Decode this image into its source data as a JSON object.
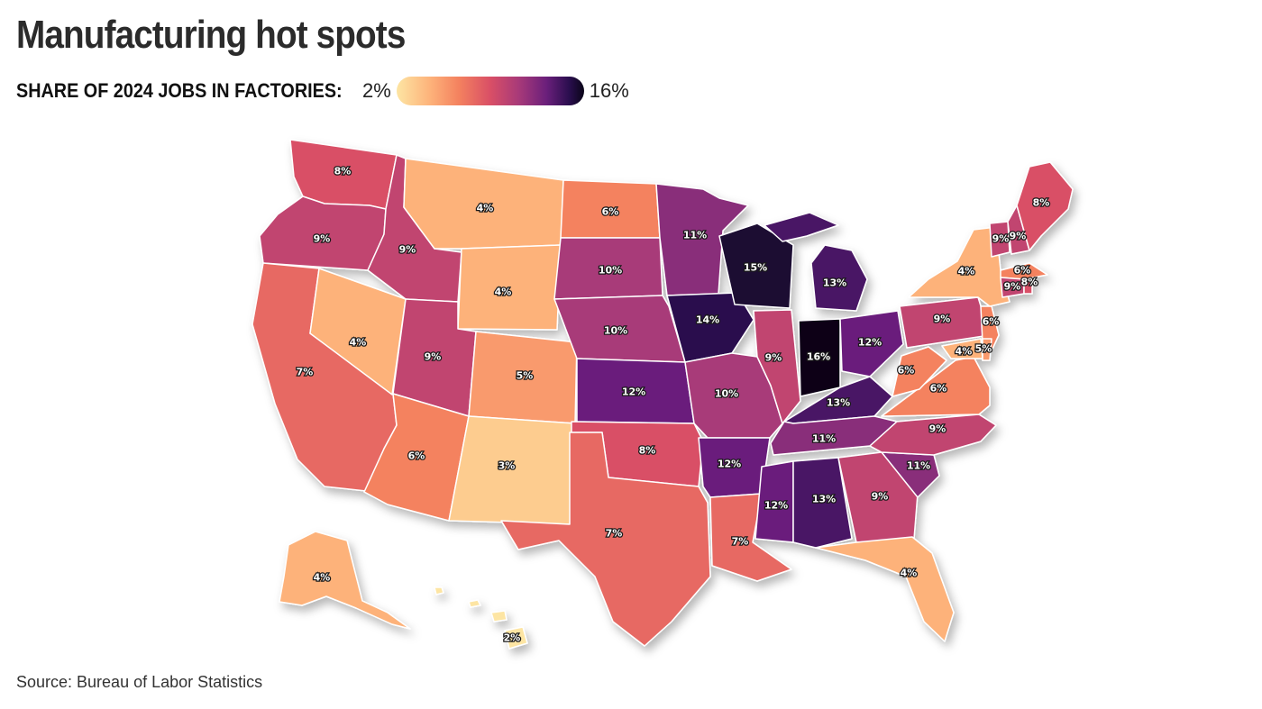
{
  "title": "Manufacturing hot spots",
  "legend": {
    "label": "SHARE OF 2024 JOBS IN FACTORIES:",
    "min_label": "2%",
    "max_label": "16%",
    "colors": [
      "#fde5a3",
      "#fdb27a",
      "#f4825f",
      "#d94f66",
      "#a83a79",
      "#6a1f7b",
      "#2a0e4e",
      "#0a0518"
    ]
  },
  "source": "Source: Bureau of Labor Statistics",
  "states": [
    {
      "code": "WA",
      "value": 8,
      "label": "8%"
    },
    {
      "code": "OR",
      "value": 9,
      "label": "9%"
    },
    {
      "code": "CA",
      "value": 7,
      "label": "7%"
    },
    {
      "code": "ID",
      "value": 9,
      "label": "9%"
    },
    {
      "code": "NV",
      "value": 4,
      "label": "4%"
    },
    {
      "code": "MT",
      "value": 4,
      "label": "4%"
    },
    {
      "code": "WY",
      "value": 4,
      "label": "4%"
    },
    {
      "code": "UT",
      "value": 9,
      "label": "9%"
    },
    {
      "code": "AZ",
      "value": 6,
      "label": "6%"
    },
    {
      "code": "CO",
      "value": 5,
      "label": "5%"
    },
    {
      "code": "NM",
      "value": 3,
      "label": "3%"
    },
    {
      "code": "ND",
      "value": 6,
      "label": "6%"
    },
    {
      "code": "SD",
      "value": 10,
      "label": "10%"
    },
    {
      "code": "NE",
      "value": 10,
      "label": "10%"
    },
    {
      "code": "KS",
      "value": 12,
      "label": "12%"
    },
    {
      "code": "OK",
      "value": 8,
      "label": "8%"
    },
    {
      "code": "TX",
      "value": 7,
      "label": "7%"
    },
    {
      "code": "MN",
      "value": 11,
      "label": "11%"
    },
    {
      "code": "IA",
      "value": 14,
      "label": "14%"
    },
    {
      "code": "MO",
      "value": 10,
      "label": "10%"
    },
    {
      "code": "AR",
      "value": 12,
      "label": "12%"
    },
    {
      "code": "LA",
      "value": 7,
      "label": "7%"
    },
    {
      "code": "WI",
      "value": 15,
      "label": "15%"
    },
    {
      "code": "IL",
      "value": 9,
      "label": "9%"
    },
    {
      "code": "MI",
      "value": 13,
      "label": "13%"
    },
    {
      "code": "IN",
      "value": 16,
      "label": "16%"
    },
    {
      "code": "OH",
      "value": 12,
      "label": "12%"
    },
    {
      "code": "KY",
      "value": 13,
      "label": "13%"
    },
    {
      "code": "TN",
      "value": 11,
      "label": "11%"
    },
    {
      "code": "MS",
      "value": 12,
      "label": "12%"
    },
    {
      "code": "AL",
      "value": 13,
      "label": "13%"
    },
    {
      "code": "GA",
      "value": 9,
      "label": "9%"
    },
    {
      "code": "FL",
      "value": 4,
      "label": "4%"
    },
    {
      "code": "SC",
      "value": 11,
      "label": "11%"
    },
    {
      "code": "NC",
      "value": 9,
      "label": "9%"
    },
    {
      "code": "VA",
      "value": 6,
      "label": "6%"
    },
    {
      "code": "WV",
      "value": 6,
      "label": "6%"
    },
    {
      "code": "PA",
      "value": 9,
      "label": "9%"
    },
    {
      "code": "NY",
      "value": 4,
      "label": "4%"
    },
    {
      "code": "NJ",
      "value": 6,
      "label": "6%"
    },
    {
      "code": "MD",
      "value": 4,
      "label": "4%"
    },
    {
      "code": "DE",
      "value": 5,
      "label": "5%"
    },
    {
      "code": "VT",
      "value": 9,
      "label": "9%"
    },
    {
      "code": "NH",
      "value": 9,
      "label": "9%"
    },
    {
      "code": "ME",
      "value": 8,
      "label": "8%"
    },
    {
      "code": "MA",
      "value": 6,
      "label": "6%"
    },
    {
      "code": "CT",
      "value": 9,
      "label": "9%"
    },
    {
      "code": "RI",
      "value": 8,
      "label": "8%"
    },
    {
      "code": "AK",
      "value": 4,
      "label": "4%"
    },
    {
      "code": "HI",
      "value": 2,
      "label": "2%"
    }
  ]
}
